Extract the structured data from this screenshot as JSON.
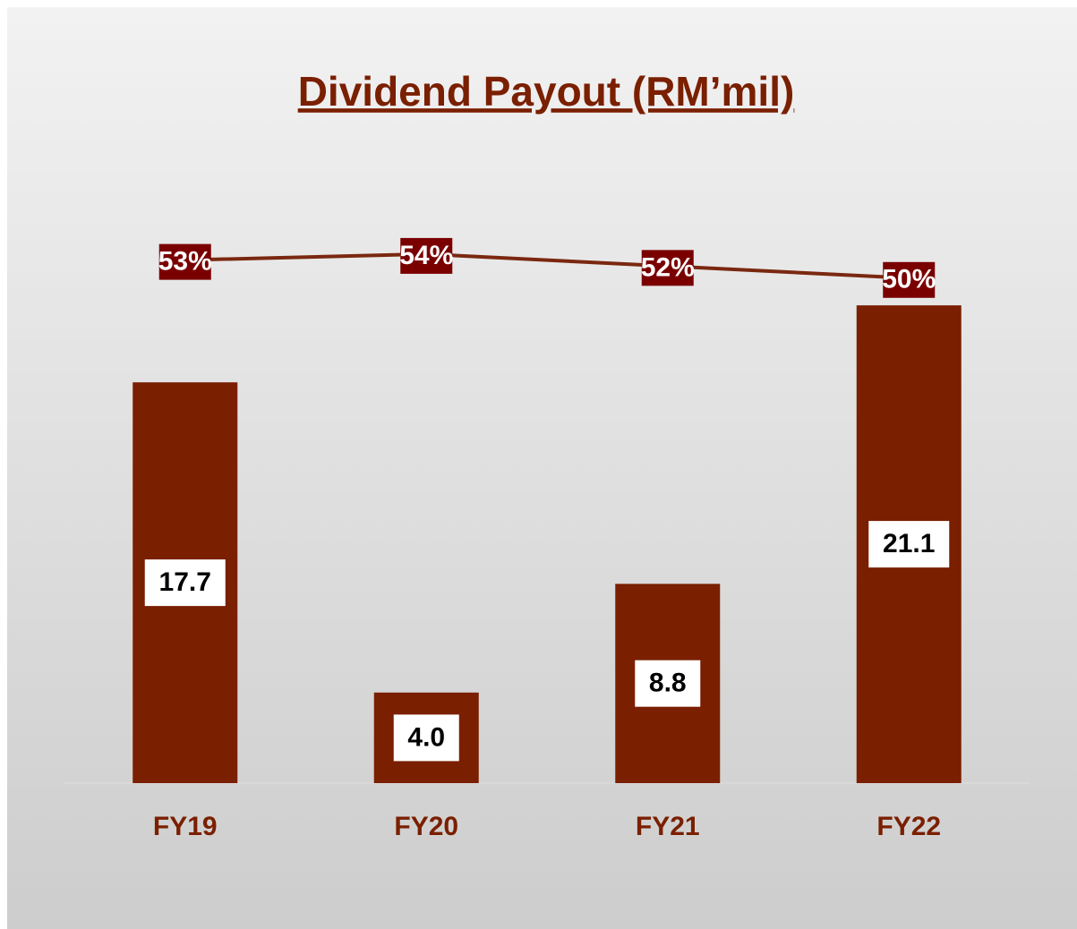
{
  "chart_data": {
    "type": "bar",
    "title": "Dividend Payout (RM’mil)",
    "categories": [
      "FY19",
      "FY20",
      "FY21",
      "FY22"
    ],
    "series": [
      {
        "type": "bar",
        "color": "#7a1f00",
        "values": [
          17.7,
          4.0,
          8.8,
          21.1
        ],
        "value_labels": [
          "17.7",
          "4.0",
          "8.8",
          "21.1"
        ]
      },
      {
        "type": "line",
        "axis": "y2",
        "color": "#7a2810",
        "values": [
          53,
          54,
          52,
          50
        ],
        "value_labels": [
          "53%",
          "54%",
          "52%",
          "50%"
        ]
      }
    ],
    "ylim": [
      0,
      30
    ],
    "y2lim": [
      -34,
      79
    ],
    "grid": false
  }
}
